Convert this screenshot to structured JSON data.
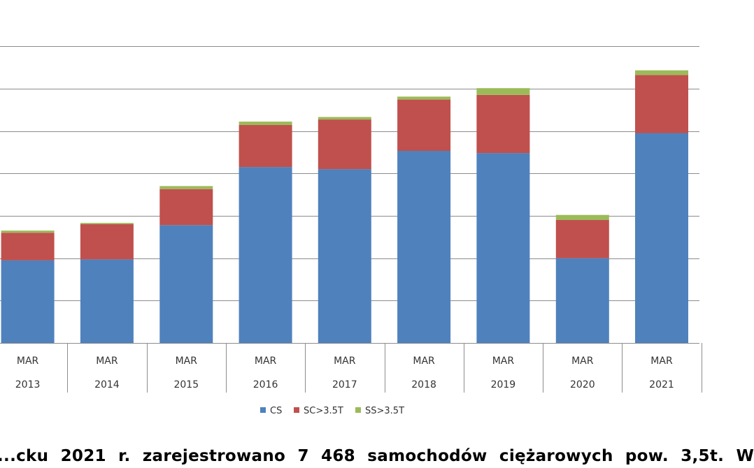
{
  "chart_data": {
    "type": "bar",
    "stacked": true,
    "ylim": [
      0,
      7500
    ],
    "y_gridline_step": 1000,
    "grid": true,
    "categories": [
      [
        "MAR",
        "2013"
      ],
      [
        "MAR",
        "2014"
      ],
      [
        "MAR",
        "2015"
      ],
      [
        "MAR",
        "2016"
      ],
      [
        "MAR",
        "2017"
      ],
      [
        "MAR",
        "2018"
      ],
      [
        "MAR",
        "2019"
      ],
      [
        "MAR",
        "2020"
      ],
      [
        "MAR",
        "2021"
      ]
    ],
    "series": [
      {
        "name": "CS",
        "color": "#4f81bd",
        "values": [
          1950,
          1970,
          2780,
          4150,
          4100,
          4530,
          4480,
          2000,
          4950
        ]
      },
      {
        "name": "SC>3.5T",
        "color": "#c0504d",
        "values": [
          650,
          830,
          850,
          990,
          1170,
          1210,
          1370,
          900,
          1370
        ]
      },
      {
        "name": "SS>3.5T",
        "color": "#9bbb59",
        "values": [
          50,
          30,
          70,
          80,
          60,
          70,
          160,
          120,
          110
        ]
      }
    ],
    "legend_position": "bottom"
  },
  "caption": "...cku 2021 r. zarejestrowano 7 468 samochodów ciężarowych pow. 3,5t. W"
}
